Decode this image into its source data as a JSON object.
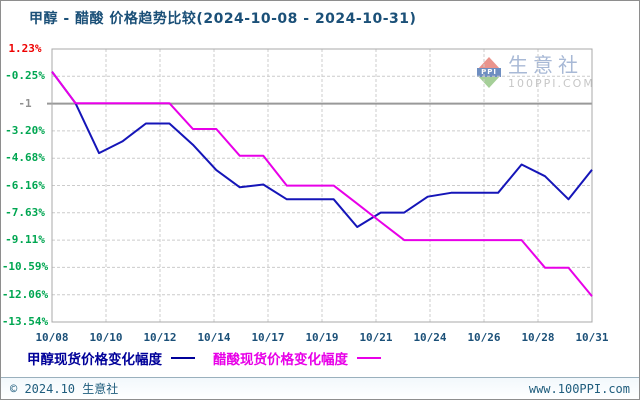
{
  "title": "甲醇 - 醋酸 价格趋势比较(2024-10-08 - 2024-10-31)",
  "watermark": {
    "brand": "生意社",
    "logo_text": "PPI",
    "site": "100PPI.COM"
  },
  "legend": {
    "items": [
      {
        "label": "甲醇现货价格变化幅度",
        "color": "#000099"
      },
      {
        "label": "醋酸现货价格变化幅度",
        "color": "#e800e8"
      }
    ]
  },
  "footer": {
    "copyright": "© 2024.10 生意社",
    "website": "www.100PPI.com"
  },
  "chart_data": {
    "type": "line",
    "title": "甲醇 - 醋酸 价格趋势比较(2024-10-08 - 2024-10-31)",
    "x": [
      "10/08",
      "10/09",
      "10/10",
      "10/11",
      "10/12",
      "10/13",
      "10/14",
      "10/15",
      "10/16",
      "10/17",
      "10/18",
      "10/19",
      "10/20",
      "10/21",
      "10/22",
      "10/23",
      "10/24",
      "10/25",
      "10/26",
      "10/27",
      "10/28",
      "10/29",
      "10/30",
      "10/31"
    ],
    "x_tick_labels": [
      "10/08",
      "10/10",
      "10/12",
      "10/14",
      "10/17",
      "10/19",
      "10/21",
      "10/24",
      "10/26",
      "10/28",
      "10/31"
    ],
    "y_tick_labels": [
      {
        "text": "1.23%",
        "color": "#ee0000"
      },
      {
        "text": "-0.25%",
        "color": "#00a651"
      },
      {
        "text": "-1",
        "color": "#909090"
      },
      {
        "text": "-3.20%",
        "color": "#00a651"
      },
      {
        "text": "-4.68%",
        "color": "#00a651"
      },
      {
        "text": "-6.16%",
        "color": "#00a651"
      },
      {
        "text": "-7.63%",
        "color": "#00a651"
      },
      {
        "text": "-9.11%",
        "color": "#00a651"
      },
      {
        "text": "-10.59%",
        "color": "#00a651"
      },
      {
        "text": "-12.06%",
        "color": "#00a651"
      },
      {
        "text": "-13.54%",
        "color": "#00a651"
      }
    ],
    "ylim": [
      -13.54,
      1.23
    ],
    "grid": true,
    "legend_position": "bottom",
    "reference_line": {
      "tick_label": "-1",
      "color": "#999999"
    },
    "series": [
      {
        "name": "甲醇现货价格变化幅度",
        "color": "#1515b8",
        "values": [
          0,
          -1.7,
          -4.4,
          -3.77,
          -2.8,
          -2.8,
          -3.95,
          -5.32,
          -6.25,
          -6.1,
          -6.9,
          -6.9,
          -6.9,
          -8.4,
          -7.62,
          -7.62,
          -6.76,
          -6.55,
          -6.55,
          -6.55,
          -5.02,
          -5.65,
          -6.9,
          -5.3
        ]
      },
      {
        "name": "醋酸现货价格变化幅度",
        "color": "#e800e8",
        "values": [
          0,
          -1.7,
          -1.7,
          -1.7,
          -1.7,
          -1.7,
          -3.1,
          -3.1,
          -4.55,
          -4.55,
          -6.16,
          -6.16,
          -6.16,
          -7.14,
          -8.13,
          -9.11,
          -9.11,
          -9.11,
          -9.11,
          -9.11,
          -9.11,
          -10.6,
          -10.6,
          -12.15
        ]
      }
    ]
  }
}
